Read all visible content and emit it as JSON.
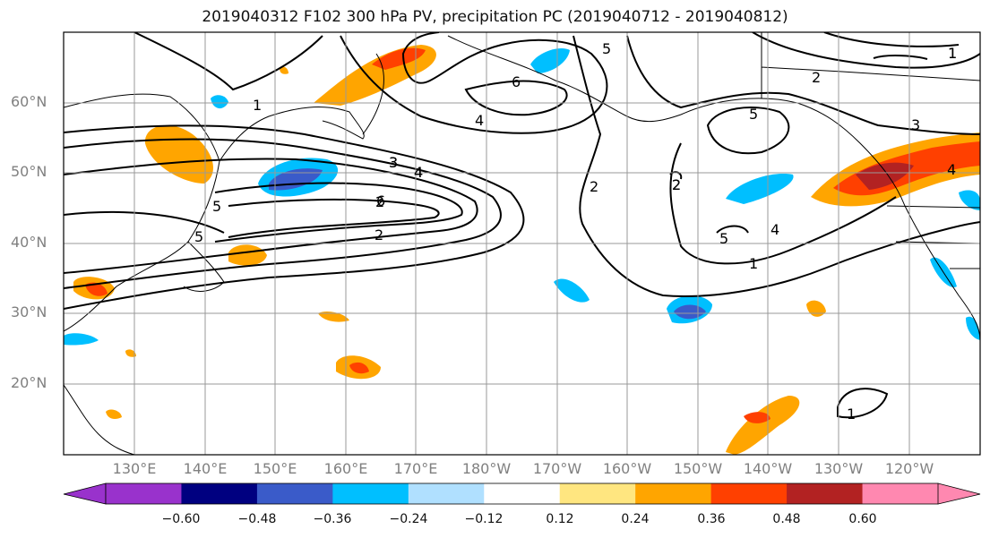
{
  "title": "2019040312 F102 300 hPa PV, precipitation PC (2019040712 - 2019040812)",
  "lat_labels": [
    "60°N",
    "50°N",
    "40°N",
    "30°N",
    "20°N"
  ],
  "lon_labels": [
    "130°E",
    "140°E",
    "150°E",
    "160°E",
    "170°E",
    "180°W",
    "170°W",
    "160°W",
    "150°W",
    "140°W",
    "130°W",
    "120°W"
  ],
  "contour_labels": [
    "1",
    "2",
    "3",
    "4",
    "5",
    "6",
    "5",
    "4",
    "3",
    "2",
    "1",
    "2",
    "5",
    "6",
    "4",
    "2",
    "5",
    "2",
    "1",
    "4",
    "5",
    "2",
    "3",
    "1",
    "4",
    "1"
  ],
  "colorbar": {
    "ticks": [
      "−0.60",
      "−0.48",
      "−0.36",
      "−0.24",
      "−0.12",
      "0.12",
      "0.24",
      "0.36",
      "0.48",
      "0.60"
    ],
    "colors": [
      "#9932cc",
      "#000080",
      "#3a5bc9",
      "#00bfff",
      "#b0e0ff",
      "#ffffff",
      "#ffe680",
      "#ffa500",
      "#ff4000",
      "#b22222",
      "#ff88b0"
    ]
  }
}
